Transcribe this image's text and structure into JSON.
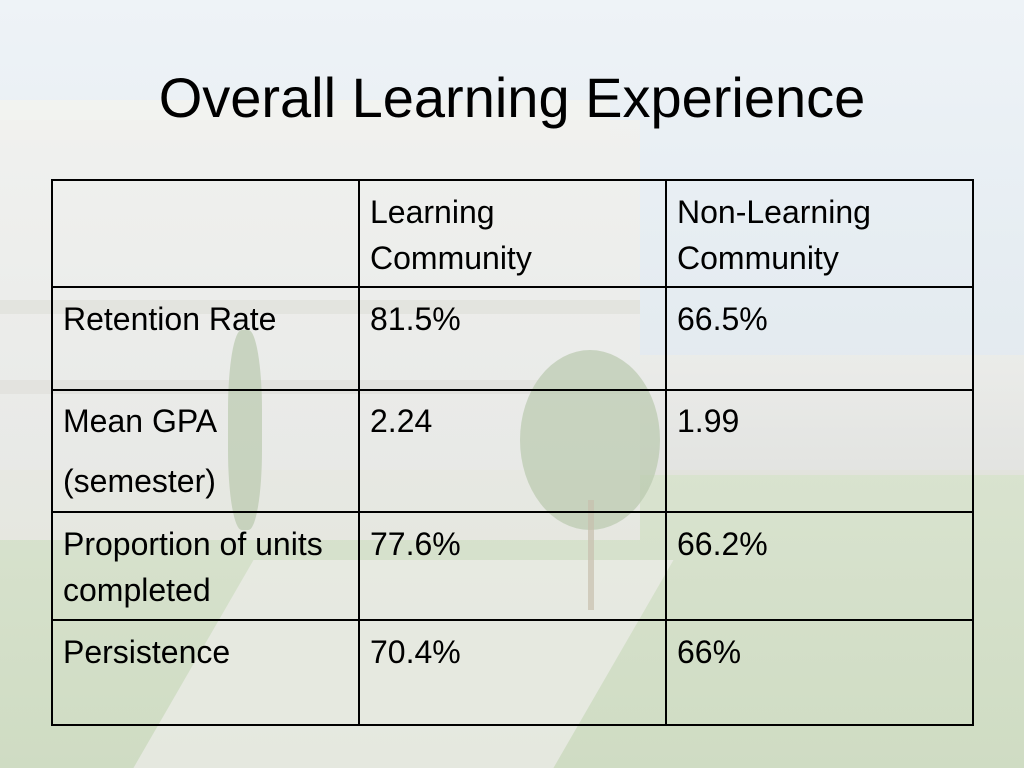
{
  "slide": {
    "title": "Overall Learning Experience"
  },
  "table": {
    "headers": [
      "",
      "Learning Community",
      "Non-Learning Community"
    ],
    "rows": [
      {
        "label": "Retention Rate",
        "learning_community": "81.5%",
        "non_learning_community": "66.5%"
      },
      {
        "label": "Mean GPA (semester)",
        "learning_community": "2.24",
        "non_learning_community": "1.99"
      },
      {
        "label": "Proportion of units completed",
        "learning_community": "77.6%",
        "non_learning_community": "66.2%"
      },
      {
        "label": "Persistence",
        "learning_community": "70.4%",
        "non_learning_community": "66%"
      }
    ]
  }
}
